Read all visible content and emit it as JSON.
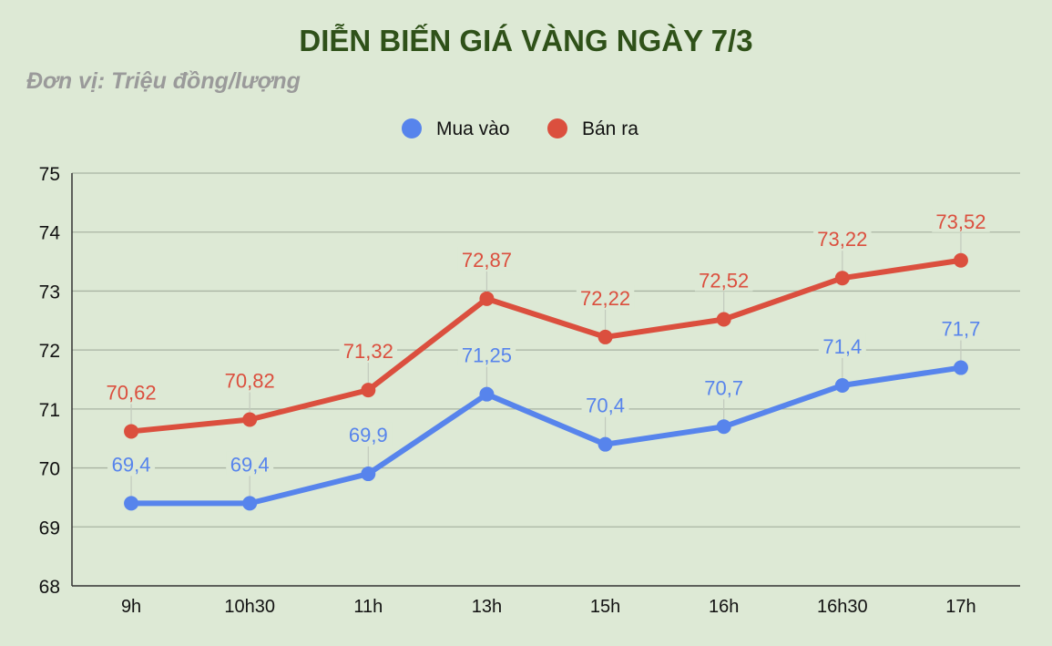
{
  "chart_data": {
    "type": "line",
    "title": "DIỄN BIẾN GIÁ VÀNG NGÀY 7/3",
    "subtitle": "Đơn vị: Triệu đồng/lượng",
    "categories": [
      "9h",
      "10h30",
      "11h",
      "13h",
      "15h",
      "16h",
      "16h30",
      "17h"
    ],
    "series": [
      {
        "name": "Mua vào",
        "color": "#5784ec",
        "values": [
          69.4,
          69.4,
          69.9,
          71.25,
          70.4,
          70.7,
          71.4,
          71.7
        ],
        "labels": [
          "69,4",
          "69,4",
          "69,9",
          "71,25",
          "70,4",
          "70,7",
          "71,4",
          "71,7"
        ]
      },
      {
        "name": "Bán ra",
        "color": "#db4f3e",
        "values": [
          70.62,
          70.82,
          71.32,
          72.87,
          72.22,
          72.52,
          73.22,
          73.52
        ],
        "labels": [
          "70,62",
          "70,82",
          "71,32",
          "72,87",
          "72,22",
          "72,52",
          "73,22",
          "73,52"
        ]
      }
    ],
    "ylim": [
      68,
      75
    ],
    "yticks": [
      68,
      69,
      70,
      71,
      72,
      73,
      74,
      75
    ],
    "grid": true,
    "legend_position": "top"
  }
}
